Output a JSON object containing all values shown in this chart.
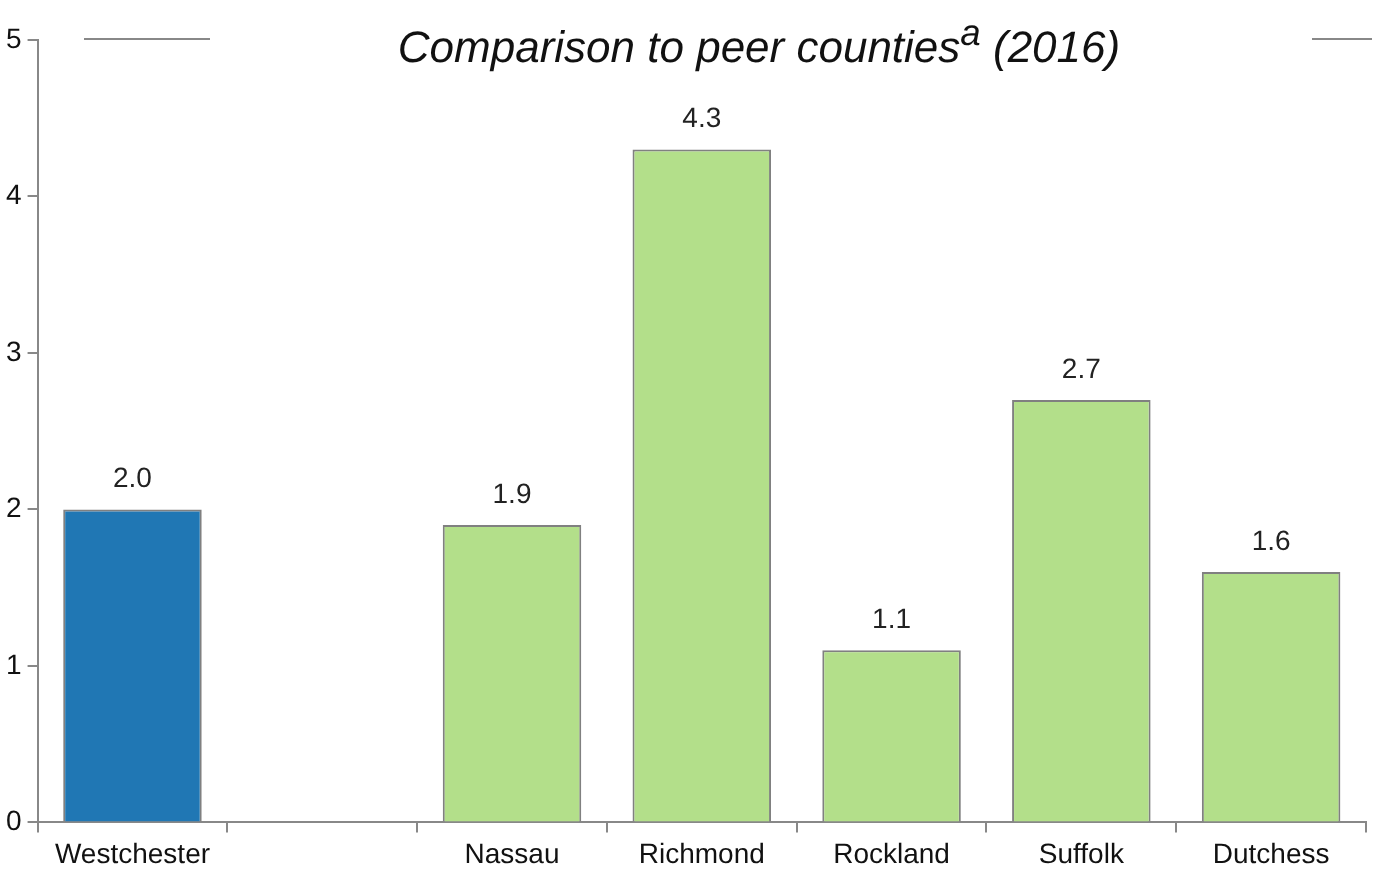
{
  "chart_data": {
    "type": "bar",
    "title": "Comparison to peer counties$^{a}$ (2016)",
    "categories": [
      "Westchester",
      null,
      "Nassau",
      "Richmond",
      "Rockland",
      "Suffolk",
      "Dutchess"
    ],
    "values": [
      2.0,
      null,
      1.9,
      4.3,
      1.1,
      2.7,
      1.6
    ],
    "colors": [
      "#2077b4",
      null,
      "#b3df8a",
      "#b3df8a",
      "#b3df8a",
      "#b3df8a",
      "#b3df8a"
    ],
    "value_labels": [
      "2.0",
      null,
      "1.9",
      "4.3",
      "1.1",
      "2.7",
      "1.6"
    ],
    "ylim": [
      0,
      5
    ],
    "yticks": [
      0,
      1,
      2,
      3,
      4,
      5
    ],
    "grid": false,
    "legend": false
  }
}
